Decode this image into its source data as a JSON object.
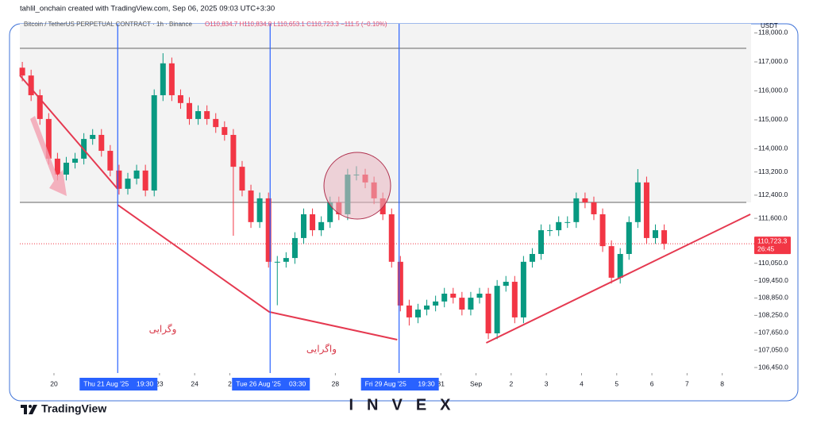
{
  "header": "tahlil_onchain created with TradingView.com, Sep 06, 2025 09:03 UTC+3:30",
  "brand": "TradingView",
  "watermark": "INVEX",
  "chart_data": {
    "type": "candlestick",
    "title": "Bitcoin / TetherUS PERPETUAL CONTRACT · 1h · Binance",
    "ohlc_text": "O110,834.7 H110,834.8 L110,653.1 C110,723.3 −111.5 (−0.10%)",
    "currency": "USDT",
    "up_color": "#089981",
    "down_color": "#f23645",
    "x": [
      19.1,
      19.35,
      19.6,
      19.85,
      20.1,
      20.35,
      20.6,
      20.85,
      21.1,
      21.35,
      21.6,
      21.85,
      22.1,
      22.35,
      22.6,
      22.85,
      23.1,
      23.35,
      23.6,
      23.85,
      24.1,
      24.35,
      24.6,
      24.85,
      25.1,
      25.35,
      25.6,
      25.85,
      26.1,
      26.35,
      26.6,
      26.85,
      27.1,
      27.35,
      27.6,
      27.85,
      28.1,
      28.35,
      28.6,
      28.85,
      29.1,
      29.35,
      29.6,
      29.85,
      30.1,
      30.35,
      30.6,
      30.85,
      31.1,
      31.35,
      31.6,
      31.85,
      32.1,
      32.35,
      32.6,
      32.85,
      33.1,
      33.35,
      33.6,
      33.85,
      34.1,
      34.35,
      34.6,
      34.85,
      35.1,
      35.35,
      35.6,
      35.85,
      36.1,
      36.35,
      36.6,
      36.85,
      37.1,
      37.35
    ],
    "open": [
      116800,
      116530,
      115850,
      115030,
      113660,
      113110,
      113520,
      113660,
      114340,
      114480,
      113930,
      113250,
      112620,
      112970,
      113250,
      112560,
      115850,
      116950,
      115850,
      115580,
      115030,
      115300,
      115030,
      114750,
      114480,
      113380,
      112560,
      111470,
      112290,
      110100,
      110100,
      110230,
      110920,
      111740,
      111190,
      111470,
      112150,
      111740,
      113110,
      113110,
      112840,
      112290,
      111740,
      110100,
      108590,
      108180,
      108450,
      108590,
      108730,
      109000,
      108860,
      108450,
      108860,
      109000,
      107630,
      109270,
      109410,
      108180,
      110100,
      110370,
      111190,
      111190,
      111470,
      111470,
      112290,
      112150,
      111740,
      110640,
      109550,
      110370,
      111470,
      112840,
      110920,
      111190
    ],
    "high": [
      117000,
      116730,
      116050,
      115230,
      113860,
      113720,
      113860,
      114540,
      114680,
      114680,
      114130,
      113450,
      113170,
      113450,
      113450,
      116050,
      117300,
      117150,
      116050,
      115780,
      115500,
      115500,
      115230,
      114950,
      114680,
      113580,
      112760,
      112490,
      112490,
      110300,
      110430,
      111120,
      111940,
      111940,
      111670,
      112350,
      112350,
      113310,
      113400,
      113310,
      113040,
      112490,
      111940,
      110300,
      108790,
      108650,
      108790,
      108930,
      109200,
      109200,
      109060,
      109060,
      109200,
      109200,
      109470,
      109610,
      109610,
      110300,
      110570,
      111390,
      111390,
      111670,
      111670,
      112490,
      112490,
      112350,
      111940,
      110840,
      110570,
      111670,
      113300,
      113040,
      111390,
      111390
    ],
    "low": [
      116330,
      115650,
      114830,
      113460,
      112910,
      112910,
      113320,
      113460,
      114140,
      113730,
      113050,
      112420,
      112420,
      112770,
      112360,
      112360,
      115650,
      115650,
      115380,
      114830,
      114830,
      114830,
      114550,
      114280,
      111000,
      112360,
      111270,
      111270,
      109900,
      108600,
      109900,
      110030,
      110720,
      110990,
      110990,
      111270,
      111540,
      111540,
      112910,
      112640,
      112090,
      111540,
      109900,
      108390,
      107900,
      107980,
      108250,
      108390,
      108530,
      108660,
      108250,
      108250,
      108660,
      107430,
      107430,
      109070,
      107980,
      107980,
      109900,
      110170,
      110990,
      110990,
      111270,
      111270,
      111950,
      111540,
      110440,
      109350,
      109350,
      110170,
      111270,
      110720,
      110720,
      110523
    ],
    "close": [
      116530,
      115850,
      115030,
      113660,
      113110,
      113520,
      113660,
      114340,
      114480,
      113930,
      113250,
      112620,
      112970,
      113250,
      112560,
      115850,
      116950,
      115850,
      115580,
      115030,
      115300,
      115030,
      114750,
      114480,
      113380,
      112560,
      111470,
      112290,
      110100,
      110100,
      110230,
      110920,
      111740,
      111190,
      111470,
      112150,
      111740,
      113110,
      113110,
      112840,
      112290,
      111740,
      110100,
      108590,
      108180,
      108450,
      108590,
      108730,
      109000,
      108860,
      108450,
      108860,
      109000,
      107630,
      109270,
      109410,
      108180,
      110100,
      110370,
      111190,
      111190,
      111470,
      111470,
      112290,
      112150,
      111740,
      110640,
      109550,
      110370,
      111470,
      112840,
      110920,
      111190,
      110723.3
    ],
    "xlim": [
      19.03,
      39.82
    ],
    "ylim": [
      106260,
      118315
    ],
    "xticks": [
      {
        "value": 20,
        "label": "20"
      },
      {
        "value": 23,
        "label": "23"
      },
      {
        "value": 24,
        "label": "24"
      },
      {
        "value": 25,
        "label": "2"
      },
      {
        "value": 28,
        "label": "28"
      },
      {
        "value": 31,
        "label": "31"
      },
      {
        "value": 32,
        "label": "Sep"
      },
      {
        "value": 33,
        "label": "2"
      },
      {
        "value": 34,
        "label": "3"
      },
      {
        "value": 35,
        "label": "4"
      },
      {
        "value": 36,
        "label": "5"
      },
      {
        "value": 37,
        "label": "6"
      },
      {
        "value": 38,
        "label": "7"
      },
      {
        "value": 39,
        "label": "8"
      }
    ],
    "yticks": [
      {
        "value": 118000,
        "label": "118,000.0"
      },
      {
        "value": 117000,
        "label": "117,000.0"
      },
      {
        "value": 116000,
        "label": "116,000.0"
      },
      {
        "value": 115000,
        "label": "115,000.0"
      },
      {
        "value": 114000,
        "label": "114,000.0"
      },
      {
        "value": 113200,
        "label": "113,200.0"
      },
      {
        "value": 112400,
        "label": "112,400.0"
      },
      {
        "value": 111600,
        "label": "111,600.0"
      },
      {
        "value": 110050,
        "label": "110,050.0"
      },
      {
        "value": 109450,
        "label": "109,450.0"
      },
      {
        "value": 108850,
        "label": "108,850.0"
      },
      {
        "value": 108250,
        "label": "108,250.0"
      },
      {
        "value": 107650,
        "label": "107,650.0"
      },
      {
        "value": 107050,
        "label": "107,050.0"
      },
      {
        "value": 106450,
        "label": "106,450.0"
      }
    ],
    "hlines": [
      117470,
      112150
    ],
    "zone_color": "#f3f3f3",
    "vlines": [
      {
        "x": 21.8125,
        "date": "Thu 21 Aug '25",
        "time": "19:30"
      },
      {
        "x": 26.146,
        "date": "Tue 26 Aug '25",
        "time": "03:30"
      },
      {
        "x": 29.8125,
        "date": "Fri 29 Aug '25",
        "time": "19:30"
      }
    ],
    "vline_color": "#2962ff",
    "trend_color": "#e53950",
    "trend_lines": [
      {
        "x": [
          19.03,
          21.81
        ],
        "y": [
          116534,
          112616
        ]
      },
      {
        "x": [
          21.81,
          26.12,
          29.76
        ],
        "y": [
          112068,
          108370,
          107411
        ]
      },
      {
        "x": [
          32.29,
          39.8
        ],
        "y": [
          107301,
          111740
        ]
      }
    ],
    "last_price": {
      "value": 110723.3,
      "label": "110,723.3",
      "countdown": "26:45"
    },
    "annotations": [
      "وگرایی",
      "واگرایی"
    ]
  }
}
